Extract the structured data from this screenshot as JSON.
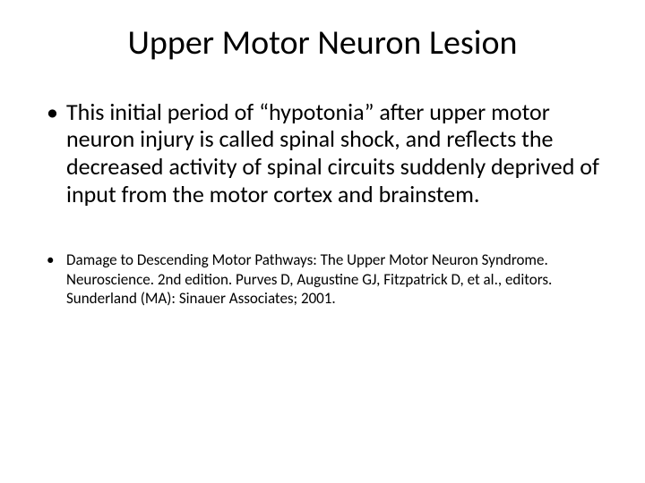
{
  "slide": {
    "title": "Upper Motor Neuron Lesion",
    "bullets": [
      {
        "text": "This initial period of “hypotonia” after upper motor neuron injury is called spinal shock, and reflects the decreased activity of spinal circuits suddenly deprived of input from the motor cortex and brainstem.",
        "class": "body-text"
      },
      {
        "text": "Damage to Descending Motor Pathways: The Upper Motor Neuron Syndrome. Neuroscience. 2nd edition. Purves D, Augustine GJ, Fitzpatrick D, et al., editors. Sunderland (MA): Sinauer Associates; 2001.",
        "class": "ref-text"
      }
    ],
    "styles": {
      "background_color": "#ffffff",
      "text_color": "#000000",
      "title_fontsize": 38,
      "body_fontsize": 26,
      "ref_fontsize": 17
    }
  }
}
